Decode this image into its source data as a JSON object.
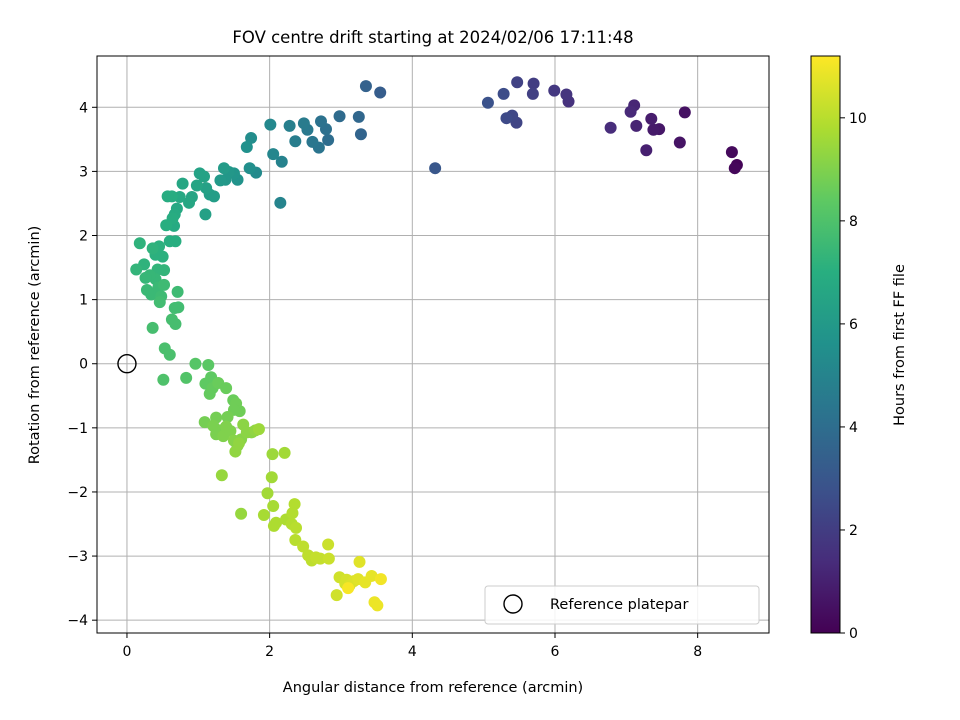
{
  "chart_data": {
    "type": "scatter",
    "title": "FOV centre drift starting at 2024/02/06 17:11:48",
    "xlabel": "Angular distance from reference (arcmin)",
    "ylabel": "Rotation from reference (arcmin)",
    "xlim": [
      -0.42,
      9.0
    ],
    "ylim": [
      -4.2,
      4.8
    ],
    "xticks": [
      0,
      2,
      4,
      6,
      8
    ],
    "yticks": [
      -4,
      -3,
      -2,
      -1,
      0,
      1,
      2,
      3,
      4
    ],
    "grid": true,
    "colormap": "viridis",
    "colorbar": {
      "label": "Hours from first FF file",
      "range": [
        0,
        11.2
      ],
      "ticks": [
        0,
        2,
        4,
        6,
        8,
        10
      ]
    },
    "legend": {
      "placement": "bottom-right",
      "entries": [
        "Reference platepar"
      ]
    },
    "reference_point": {
      "x": 0,
      "y": 0
    },
    "points": [
      [
        8.55,
        3.1,
        0.1
      ],
      [
        8.52,
        3.05,
        0.2
      ],
      [
        8.48,
        3.3,
        0.3
      ],
      [
        7.82,
        3.92,
        0.5
      ],
      [
        7.75,
        3.45,
        0.6
      ],
      [
        7.46,
        3.66,
        0.7
      ],
      [
        7.38,
        3.65,
        0.8
      ],
      [
        7.35,
        3.82,
        0.9
      ],
      [
        7.28,
        3.33,
        1.0
      ],
      [
        7.14,
        3.71,
        1.1
      ],
      [
        7.11,
        4.03,
        1.2
      ],
      [
        7.06,
        3.93,
        1.3
      ],
      [
        6.78,
        3.68,
        1.4
      ],
      [
        6.19,
        4.09,
        1.6
      ],
      [
        6.16,
        4.2,
        1.7
      ],
      [
        5.99,
        4.26,
        1.8
      ],
      [
        5.7,
        4.37,
        2.0
      ],
      [
        5.69,
        4.21,
        2.1
      ],
      [
        5.47,
        4.39,
        2.2
      ],
      [
        5.46,
        3.76,
        2.3
      ],
      [
        5.4,
        3.87,
        2.4
      ],
      [
        5.32,
        3.83,
        2.5
      ],
      [
        5.28,
        4.21,
        2.6
      ],
      [
        5.06,
        4.07,
        2.8
      ],
      [
        4.32,
        3.05,
        3.0
      ],
      [
        3.55,
        4.23,
        3.3
      ],
      [
        3.35,
        4.33,
        3.5
      ],
      [
        3.28,
        3.58,
        3.6
      ],
      [
        3.25,
        3.85,
        3.7
      ],
      [
        2.98,
        3.86,
        3.9
      ],
      [
        2.82,
        3.49,
        4.0
      ],
      [
        2.79,
        3.66,
        4.1
      ],
      [
        2.72,
        3.78,
        4.2
      ],
      [
        2.69,
        3.37,
        4.3
      ],
      [
        2.6,
        3.46,
        4.4
      ],
      [
        2.53,
        3.65,
        4.5
      ],
      [
        2.48,
        3.75,
        4.6
      ],
      [
        2.36,
        3.47,
        4.7
      ],
      [
        2.28,
        3.71,
        4.8
      ],
      [
        2.17,
        3.15,
        4.9
      ],
      [
        2.15,
        2.51,
        5.0
      ],
      [
        2.05,
        3.27,
        5.1
      ],
      [
        2.01,
        3.73,
        5.2
      ],
      [
        1.81,
        2.98,
        5.3
      ],
      [
        1.74,
        3.52,
        5.4
      ],
      [
        1.72,
        3.05,
        5.5
      ],
      [
        1.68,
        3.38,
        5.6
      ],
      [
        1.55,
        2.87,
        5.7
      ],
      [
        1.5,
        2.97,
        5.8
      ],
      [
        1.43,
        2.99,
        5.9
      ],
      [
        1.38,
        2.87,
        5.9
      ],
      [
        1.31,
        2.86,
        6.0
      ],
      [
        1.36,
        3.05,
        6.1
      ],
      [
        1.22,
        2.61,
        6.2
      ],
      [
        1.16,
        2.64,
        6.2
      ],
      [
        1.11,
        2.74,
        6.3
      ],
      [
        1.1,
        2.33,
        6.3
      ],
      [
        1.08,
        2.92,
        6.4
      ],
      [
        1.02,
        2.97,
        6.4
      ],
      [
        0.98,
        2.78,
        6.5
      ],
      [
        0.91,
        2.6,
        6.5
      ],
      [
        0.87,
        2.51,
        6.6
      ],
      [
        0.78,
        2.81,
        6.6
      ],
      [
        0.74,
        2.6,
        6.7
      ],
      [
        0.7,
        2.42,
        6.7
      ],
      [
        0.67,
        2.33,
        6.8
      ],
      [
        0.66,
        2.15,
        6.8
      ],
      [
        0.64,
        2.27,
        6.9
      ],
      [
        0.63,
        2.61,
        6.9
      ],
      [
        0.57,
        2.61,
        6.9
      ],
      [
        0.55,
        2.16,
        7.0
      ],
      [
        0.68,
        1.91,
        7.0
      ],
      [
        0.6,
        1.91,
        7.0
      ],
      [
        0.5,
        1.67,
        7.1
      ],
      [
        0.45,
        1.83,
        7.1
      ],
      [
        0.4,
        1.7,
        7.1
      ],
      [
        0.36,
        1.8,
        7.2
      ],
      [
        0.24,
        1.55,
        7.2
      ],
      [
        0.18,
        1.88,
        7.2
      ],
      [
        0.13,
        1.47,
        7.3
      ],
      [
        0.52,
        1.46,
        7.3
      ],
      [
        0.43,
        1.47,
        7.3
      ],
      [
        0.4,
        1.32,
        7.4
      ],
      [
        0.32,
        1.38,
        7.4
      ],
      [
        0.26,
        1.34,
        7.4
      ],
      [
        0.28,
        1.15,
        7.5
      ],
      [
        0.34,
        1.08,
        7.5
      ],
      [
        0.44,
        1.19,
        7.5
      ],
      [
        0.52,
        1.23,
        7.6
      ],
      [
        0.71,
        1.12,
        7.6
      ],
      [
        0.48,
        1.05,
        7.6
      ],
      [
        0.46,
        0.96,
        7.7
      ],
      [
        0.72,
        0.88,
        7.7
      ],
      [
        0.67,
        0.87,
        7.7
      ],
      [
        0.63,
        0.69,
        7.8
      ],
      [
        0.68,
        0.62,
        7.8
      ],
      [
        0.36,
        0.56,
        7.8
      ],
      [
        0.53,
        0.24,
        7.9
      ],
      [
        0.6,
        0.14,
        7.9
      ],
      [
        0.51,
        -0.25,
        8.0
      ],
      [
        0.83,
        -0.22,
        8.1
      ],
      [
        0.96,
        0.0,
        8.2
      ],
      [
        1.14,
        -0.02,
        8.3
      ],
      [
        1.1,
        -0.31,
        8.4
      ],
      [
        1.18,
        -0.21,
        8.4
      ],
      [
        1.16,
        -0.47,
        8.5
      ],
      [
        1.2,
        -0.38,
        8.5
      ],
      [
        1.28,
        -0.3,
        8.6
      ],
      [
        1.39,
        -0.38,
        8.6
      ],
      [
        1.49,
        -0.57,
        8.6
      ],
      [
        1.53,
        -0.62,
        8.7
      ],
      [
        1.58,
        -0.74,
        8.7
      ],
      [
        1.5,
        -0.72,
        8.7
      ],
      [
        1.41,
        -0.83,
        8.8
      ],
      [
        1.25,
        -0.84,
        8.8
      ],
      [
        1.09,
        -0.91,
        8.8
      ],
      [
        1.21,
        -0.97,
        8.9
      ],
      [
        1.25,
        -1.1,
        8.9
      ],
      [
        1.3,
        -1.04,
        8.9
      ],
      [
        1.35,
        -1.13,
        9.0
      ],
      [
        1.39,
        -0.98,
        9.0
      ],
      [
        1.45,
        -1.05,
        9.0
      ],
      [
        1.5,
        -1.2,
        9.1
      ],
      [
        1.55,
        -1.28,
        9.1
      ],
      [
        1.6,
        -1.18,
        9.1
      ],
      [
        1.63,
        -0.95,
        9.2
      ],
      [
        1.68,
        -1.07,
        9.2
      ],
      [
        1.75,
        -1.07,
        9.2
      ],
      [
        1.8,
        -1.04,
        9.3
      ],
      [
        1.52,
        -1.37,
        9.3
      ],
      [
        1.57,
        -1.24,
        9.3
      ],
      [
        1.33,
        -1.74,
        9.4
      ],
      [
        1.6,
        -2.34,
        9.4
      ],
      [
        1.85,
        -1.02,
        9.5
      ],
      [
        2.04,
        -1.41,
        9.5
      ],
      [
        2.21,
        -1.39,
        9.6
      ],
      [
        2.03,
        -1.77,
        9.6
      ],
      [
        1.97,
        -2.02,
        9.6
      ],
      [
        1.92,
        -2.36,
        9.7
      ],
      [
        2.05,
        -2.22,
        9.7
      ],
      [
        2.09,
        -2.48,
        9.8
      ],
      [
        2.06,
        -2.53,
        9.8
      ],
      [
        2.23,
        -2.43,
        9.8
      ],
      [
        2.31,
        -2.5,
        9.9
      ],
      [
        2.35,
        -2.19,
        9.9
      ],
      [
        2.32,
        -2.33,
        9.9
      ],
      [
        2.37,
        -2.56,
        10.0
      ],
      [
        2.36,
        -2.75,
        10.0
      ],
      [
        2.47,
        -2.85,
        10.1
      ],
      [
        2.54,
        -2.99,
        10.1
      ],
      [
        2.59,
        -3.07,
        10.1
      ],
      [
        2.65,
        -3.02,
        10.2
      ],
      [
        2.71,
        -3.04,
        10.2
      ],
      [
        2.83,
        -3.04,
        10.3
      ],
      [
        2.82,
        -2.82,
        10.3
      ],
      [
        2.98,
        -3.33,
        10.4
      ],
      [
        2.94,
        -3.61,
        10.4
      ],
      [
        3.06,
        -3.43,
        10.5
      ],
      [
        3.08,
        -3.37,
        10.5
      ],
      [
        3.12,
        -3.46,
        10.6
      ],
      [
        3.18,
        -3.39,
        10.6
      ],
      [
        3.24,
        -3.36,
        10.7
      ],
      [
        3.26,
        -3.09,
        10.7
      ],
      [
        3.34,
        -3.41,
        10.8
      ],
      [
        3.43,
        -3.31,
        10.8
      ],
      [
        3.47,
        -3.72,
        10.9
      ],
      [
        3.51,
        -3.77,
        10.9
      ],
      [
        3.56,
        -3.36,
        11.0
      ],
      [
        3.1,
        -3.5,
        11.1
      ]
    ]
  }
}
